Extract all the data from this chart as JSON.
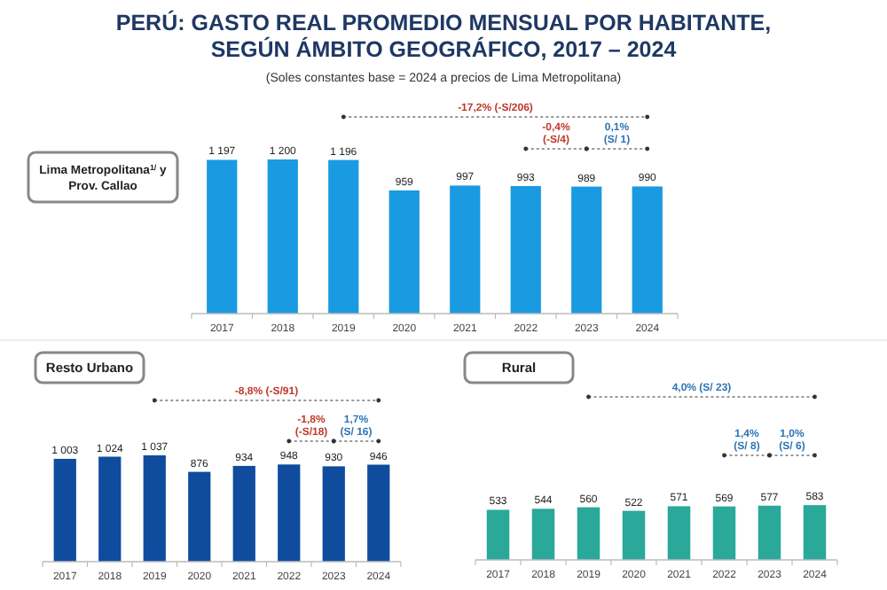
{
  "chart_data": [
    {
      "type": "other",
      "title": "PERÚ: GASTO REAL PROMEDIO MENSUAL POR HABITANTE, SEGÚN ÁMBITO GEOGRÁFICO, 2017 – 2024",
      "subtitle": "(Soles constantes base = 2024 a precios de Lima Metropolitana)"
    },
    {
      "type": "bar",
      "title": "Lima Metropolitana$^{1/}$ y Prov. Callao",
      "categories": [
        "2017",
        "2018",
        "2019",
        "2020",
        "2021",
        "2022",
        "2023",
        "2024"
      ],
      "values": [
        1197,
        1200,
        1196,
        959,
        997,
        993,
        989,
        990
      ],
      "color": "#1a9ae0",
      "tick_labels": "x",
      "data_labels": true,
      "annotations": [
        "-17,2%   (-S/206)",
        "-0,4% (-S/4)",
        "0,1% (S/ 1)"
      ]
    },
    {
      "type": "bar",
      "title": "Resto Urbano",
      "categories": [
        "2017",
        "2018",
        "2019",
        "2020",
        "2021",
        "2022",
        "2023",
        "2024"
      ],
      "values": [
        1003,
        1024,
        1037,
        876,
        934,
        948,
        930,
        946
      ],
      "color": "#0f4c9e",
      "tick_labels": "x",
      "data_labels": true,
      "annotations": [
        "-8,8%  (-S/91)",
        "-1,8% (-S/18)",
        "1,7% (S/ 16)"
      ]
    },
    {
      "type": "bar",
      "title": "Rural",
      "categories": [
        "2017",
        "2018",
        "2019",
        "2020",
        "2021",
        "2022",
        "2023",
        "2024"
      ],
      "values": [
        533,
        544,
        560,
        522,
        571,
        569,
        577,
        583
      ],
      "color": "#2aa89a",
      "tick_labels": "x",
      "data_labels": true,
      "annotations": [
        "4,0% (S/ 23)",
        "1,4% (S/ 8)",
        "1,0% (S/ 6)"
      ]
    }
  ]
}
